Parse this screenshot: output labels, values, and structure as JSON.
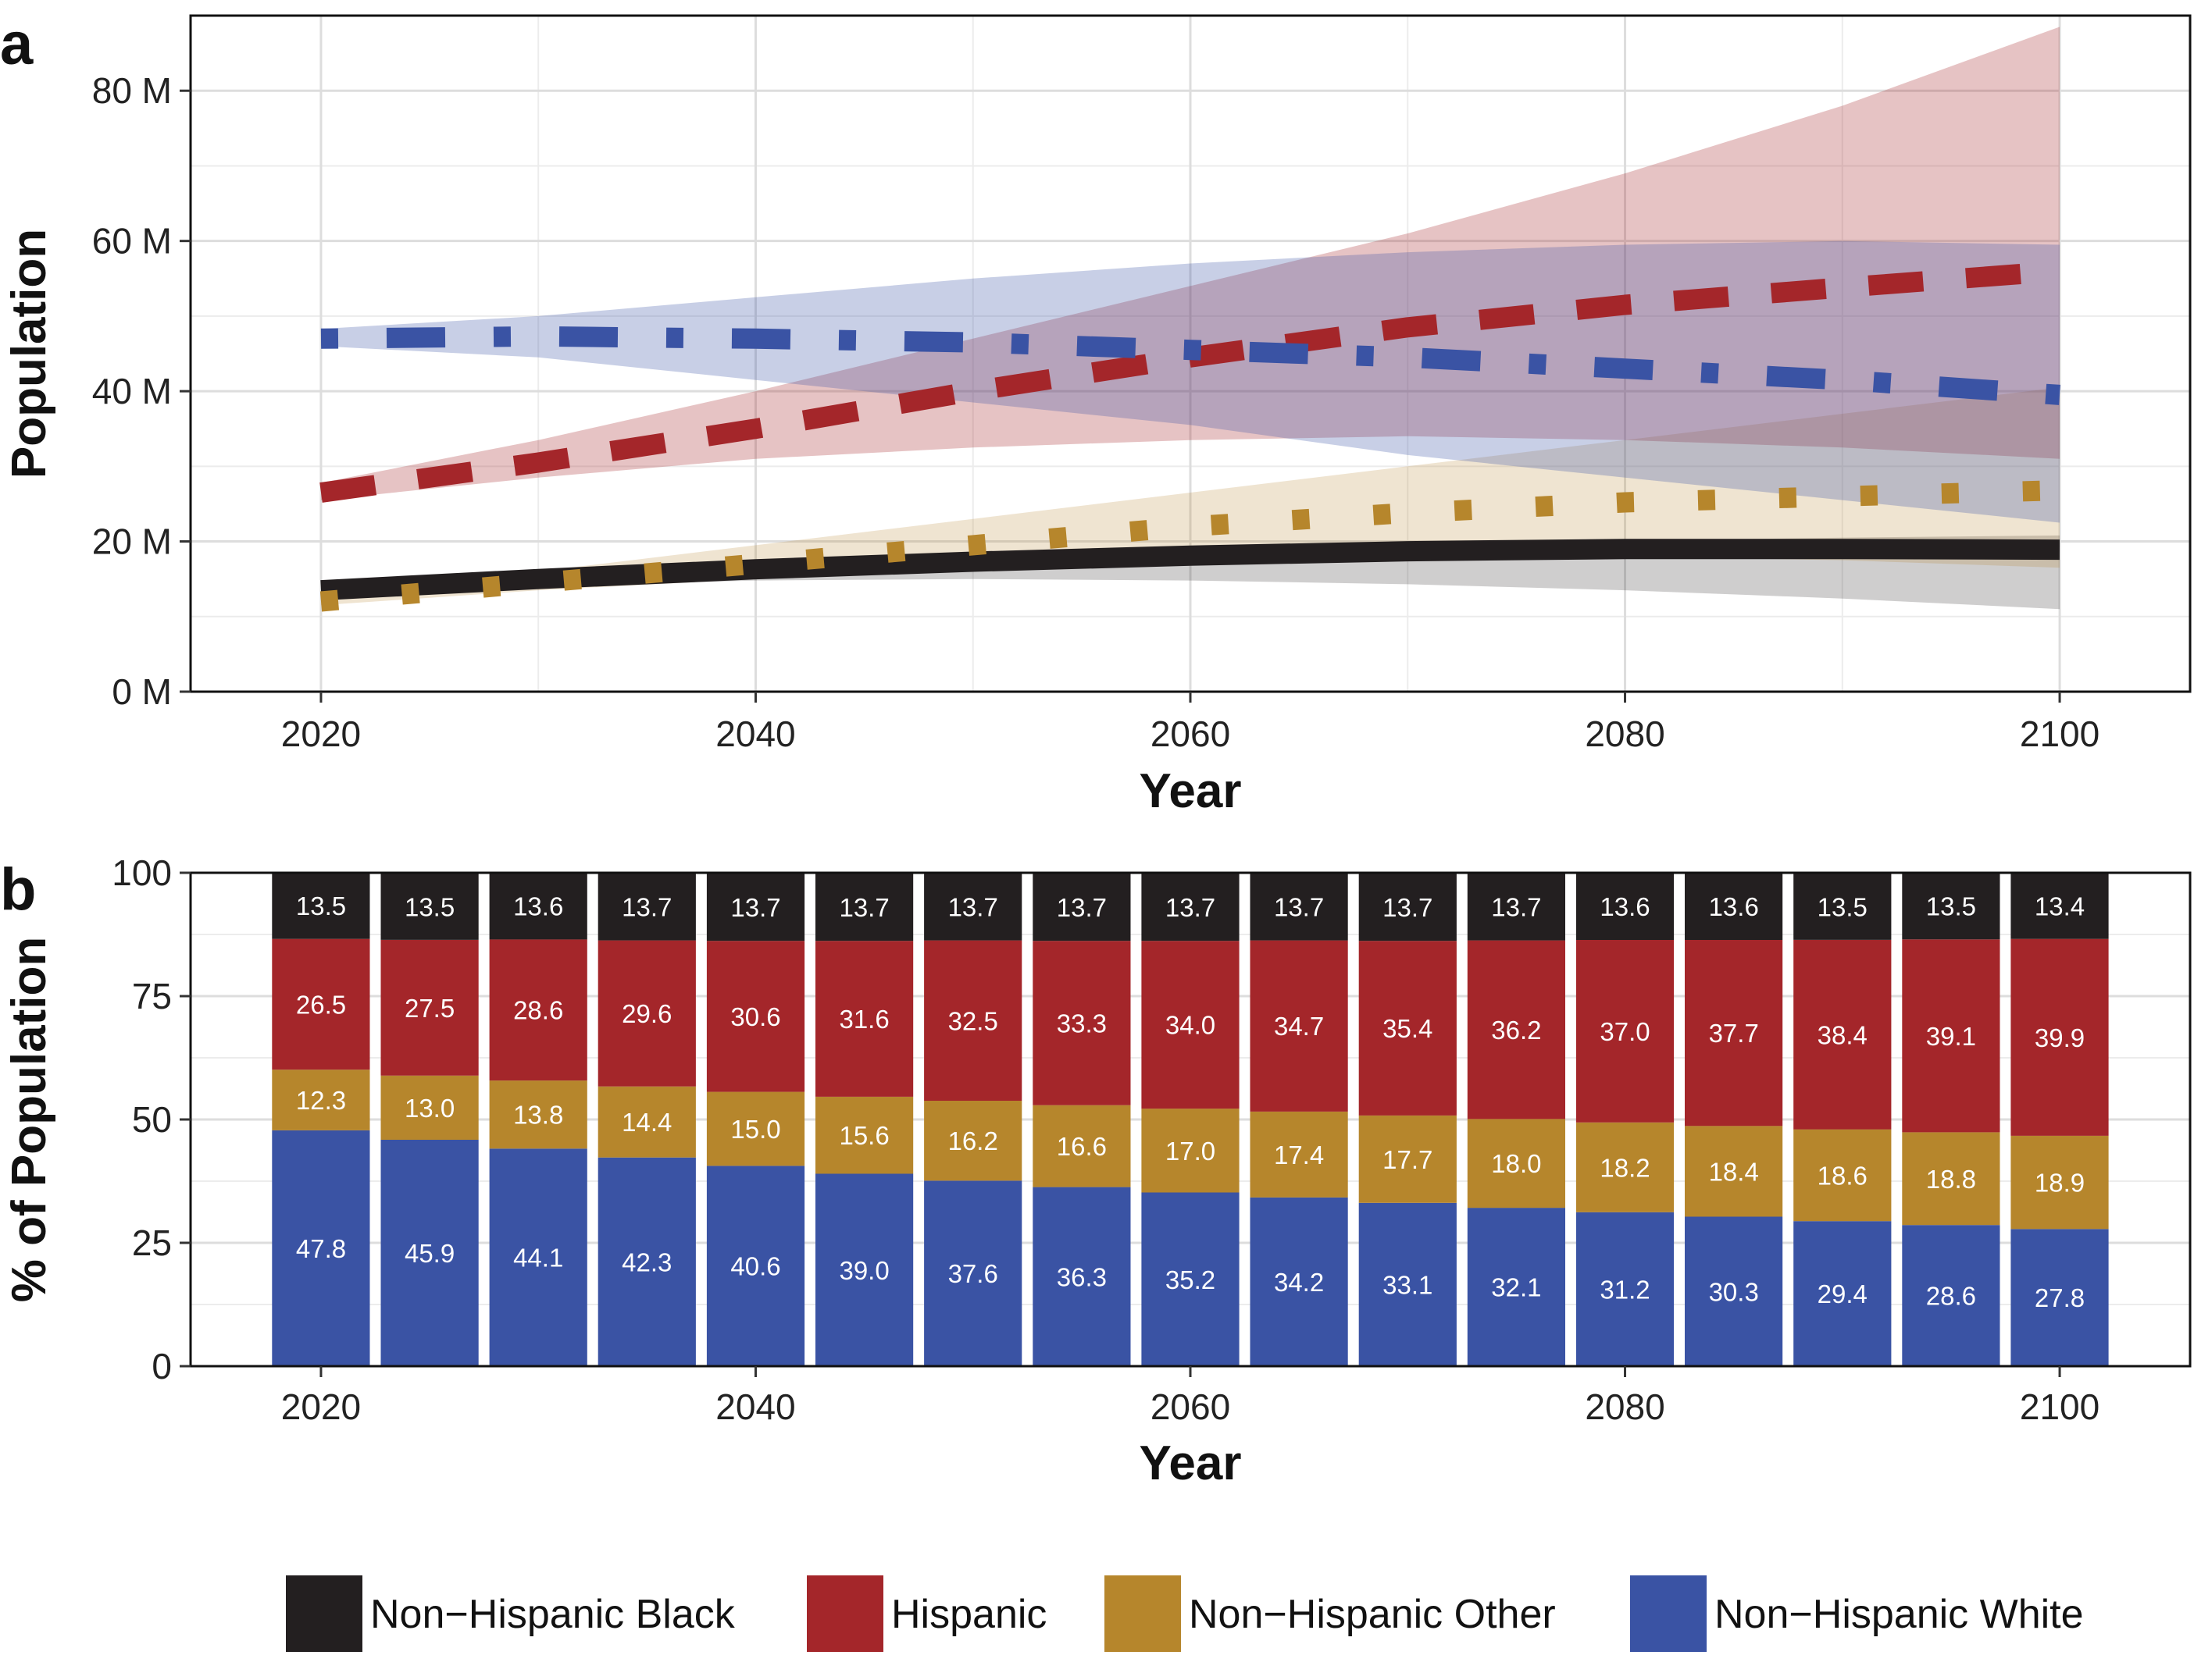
{
  "colors": {
    "nh_black": "#231f20",
    "hispanic": "#a4262a",
    "nh_other": "#b6862c",
    "nh_white": "#3a53a4"
  },
  "chart_data": [
    {
      "type": "line",
      "panel_label": "a",
      "xlabel": "Year",
      "ylabel": "Population",
      "xlim": [
        2020,
        2100
      ],
      "ylim": [
        0,
        90
      ],
      "x_ticks": [
        "2020",
        "2040",
        "2060",
        "2080",
        "2100"
      ],
      "y_ticks": [
        "0 M",
        "20 M",
        "40 M",
        "60 M",
        "80 M"
      ],
      "grid": true,
      "x": [
        2020,
        2030,
        2040,
        2050,
        2060,
        2070,
        2080,
        2090,
        2100
      ],
      "series": [
        {
          "name": "Non−Hispanic Black",
          "key": "nh_black",
          "line_style": "solid",
          "values": [
            13.5,
            15.0,
            16.3,
            17.3,
            18.1,
            18.7,
            19.0,
            19.0,
            18.9
          ],
          "lower": [
            12.8,
            14.0,
            14.8,
            15.0,
            14.8,
            14.3,
            13.5,
            12.4,
            11.0
          ],
          "upper": [
            14.3,
            16.0,
            17.5,
            18.5,
            19.3,
            19.8,
            20.1,
            20.5,
            20.8
          ]
        },
        {
          "name": "Hispanic",
          "key": "hispanic",
          "line_style": "dashed",
          "values": [
            26.5,
            30.5,
            35.0,
            40.0,
            44.5,
            48.5,
            51.5,
            53.8,
            56.0
          ],
          "lower": [
            25.5,
            28.5,
            31.0,
            32.5,
            33.5,
            34.0,
            33.5,
            32.5,
            31.0
          ],
          "upper": [
            27.8,
            33.5,
            40.0,
            47.0,
            54.0,
            61.0,
            69.0,
            78.0,
            88.5
          ]
        },
        {
          "name": "Non−Hispanic Other",
          "key": "nh_other",
          "line_style": "dotted",
          "values": [
            12.0,
            14.5,
            17.0,
            19.5,
            22.0,
            23.8,
            25.2,
            26.0,
            26.8
          ],
          "lower": [
            11.5,
            13.5,
            15.0,
            16.5,
            17.5,
            18.0,
            18.0,
            17.5,
            16.5
          ],
          "upper": [
            12.8,
            16.0,
            19.5,
            23.0,
            26.5,
            30.0,
            33.5,
            37.0,
            40.5
          ]
        },
        {
          "name": "Non−Hispanic White",
          "key": "nh_white",
          "line_style": "dotdash",
          "values": [
            47.0,
            47.3,
            47.0,
            46.5,
            45.5,
            44.5,
            43.0,
            41.5,
            39.5
          ],
          "lower": [
            46.0,
            44.5,
            41.5,
            38.5,
            35.5,
            31.5,
            28.5,
            25.5,
            22.5
          ],
          "upper": [
            48.3,
            50.0,
            52.5,
            55.0,
            57.0,
            58.5,
            59.5,
            60.0,
            59.5
          ]
        }
      ]
    },
    {
      "type": "bar",
      "stacked": true,
      "panel_label": "b",
      "xlabel": "Year",
      "ylabel": "% of Population",
      "ylim": [
        0,
        100
      ],
      "x_ticks": [
        "2020",
        "2040",
        "2060",
        "2080",
        "2100"
      ],
      "y_ticks": [
        "0",
        "25",
        "50",
        "75",
        "100"
      ],
      "categories": [
        2020,
        2025,
        2030,
        2035,
        2040,
        2045,
        2050,
        2055,
        2060,
        2065,
        2070,
        2075,
        2080,
        2085,
        2090,
        2095,
        2100
      ],
      "series": [
        {
          "name": "Non−Hispanic White",
          "key": "nh_white",
          "values": [
            47.8,
            45.9,
            44.1,
            42.3,
            40.6,
            39.0,
            37.6,
            36.3,
            35.2,
            34.2,
            33.1,
            32.1,
            31.2,
            30.3,
            29.4,
            28.6,
            27.8
          ]
        },
        {
          "name": "Non−Hispanic Other",
          "key": "nh_other",
          "values": [
            12.3,
            13.0,
            13.8,
            14.4,
            15.0,
            15.6,
            16.2,
            16.6,
            17.0,
            17.4,
            17.7,
            18.0,
            18.2,
            18.4,
            18.6,
            18.8,
            18.9
          ]
        },
        {
          "name": "Hispanic",
          "key": "hispanic",
          "values": [
            26.5,
            27.5,
            28.6,
            29.6,
            30.6,
            31.6,
            32.5,
            33.3,
            34.0,
            34.7,
            35.4,
            36.2,
            37.0,
            37.7,
            38.4,
            39.1,
            39.9
          ]
        },
        {
          "name": "Non−Hispanic Black",
          "key": "nh_black",
          "values": [
            13.5,
            13.5,
            13.6,
            13.7,
            13.7,
            13.7,
            13.7,
            13.7,
            13.7,
            13.7,
            13.7,
            13.7,
            13.6,
            13.6,
            13.5,
            13.5,
            13.4
          ]
        }
      ]
    }
  ],
  "legend": [
    {
      "key": "nh_black",
      "label": "Non−Hispanic Black"
    },
    {
      "key": "hispanic",
      "label": "Hispanic"
    },
    {
      "key": "nh_other",
      "label": "Non−Hispanic Other"
    },
    {
      "key": "nh_white",
      "label": "Non−Hispanic White"
    }
  ]
}
